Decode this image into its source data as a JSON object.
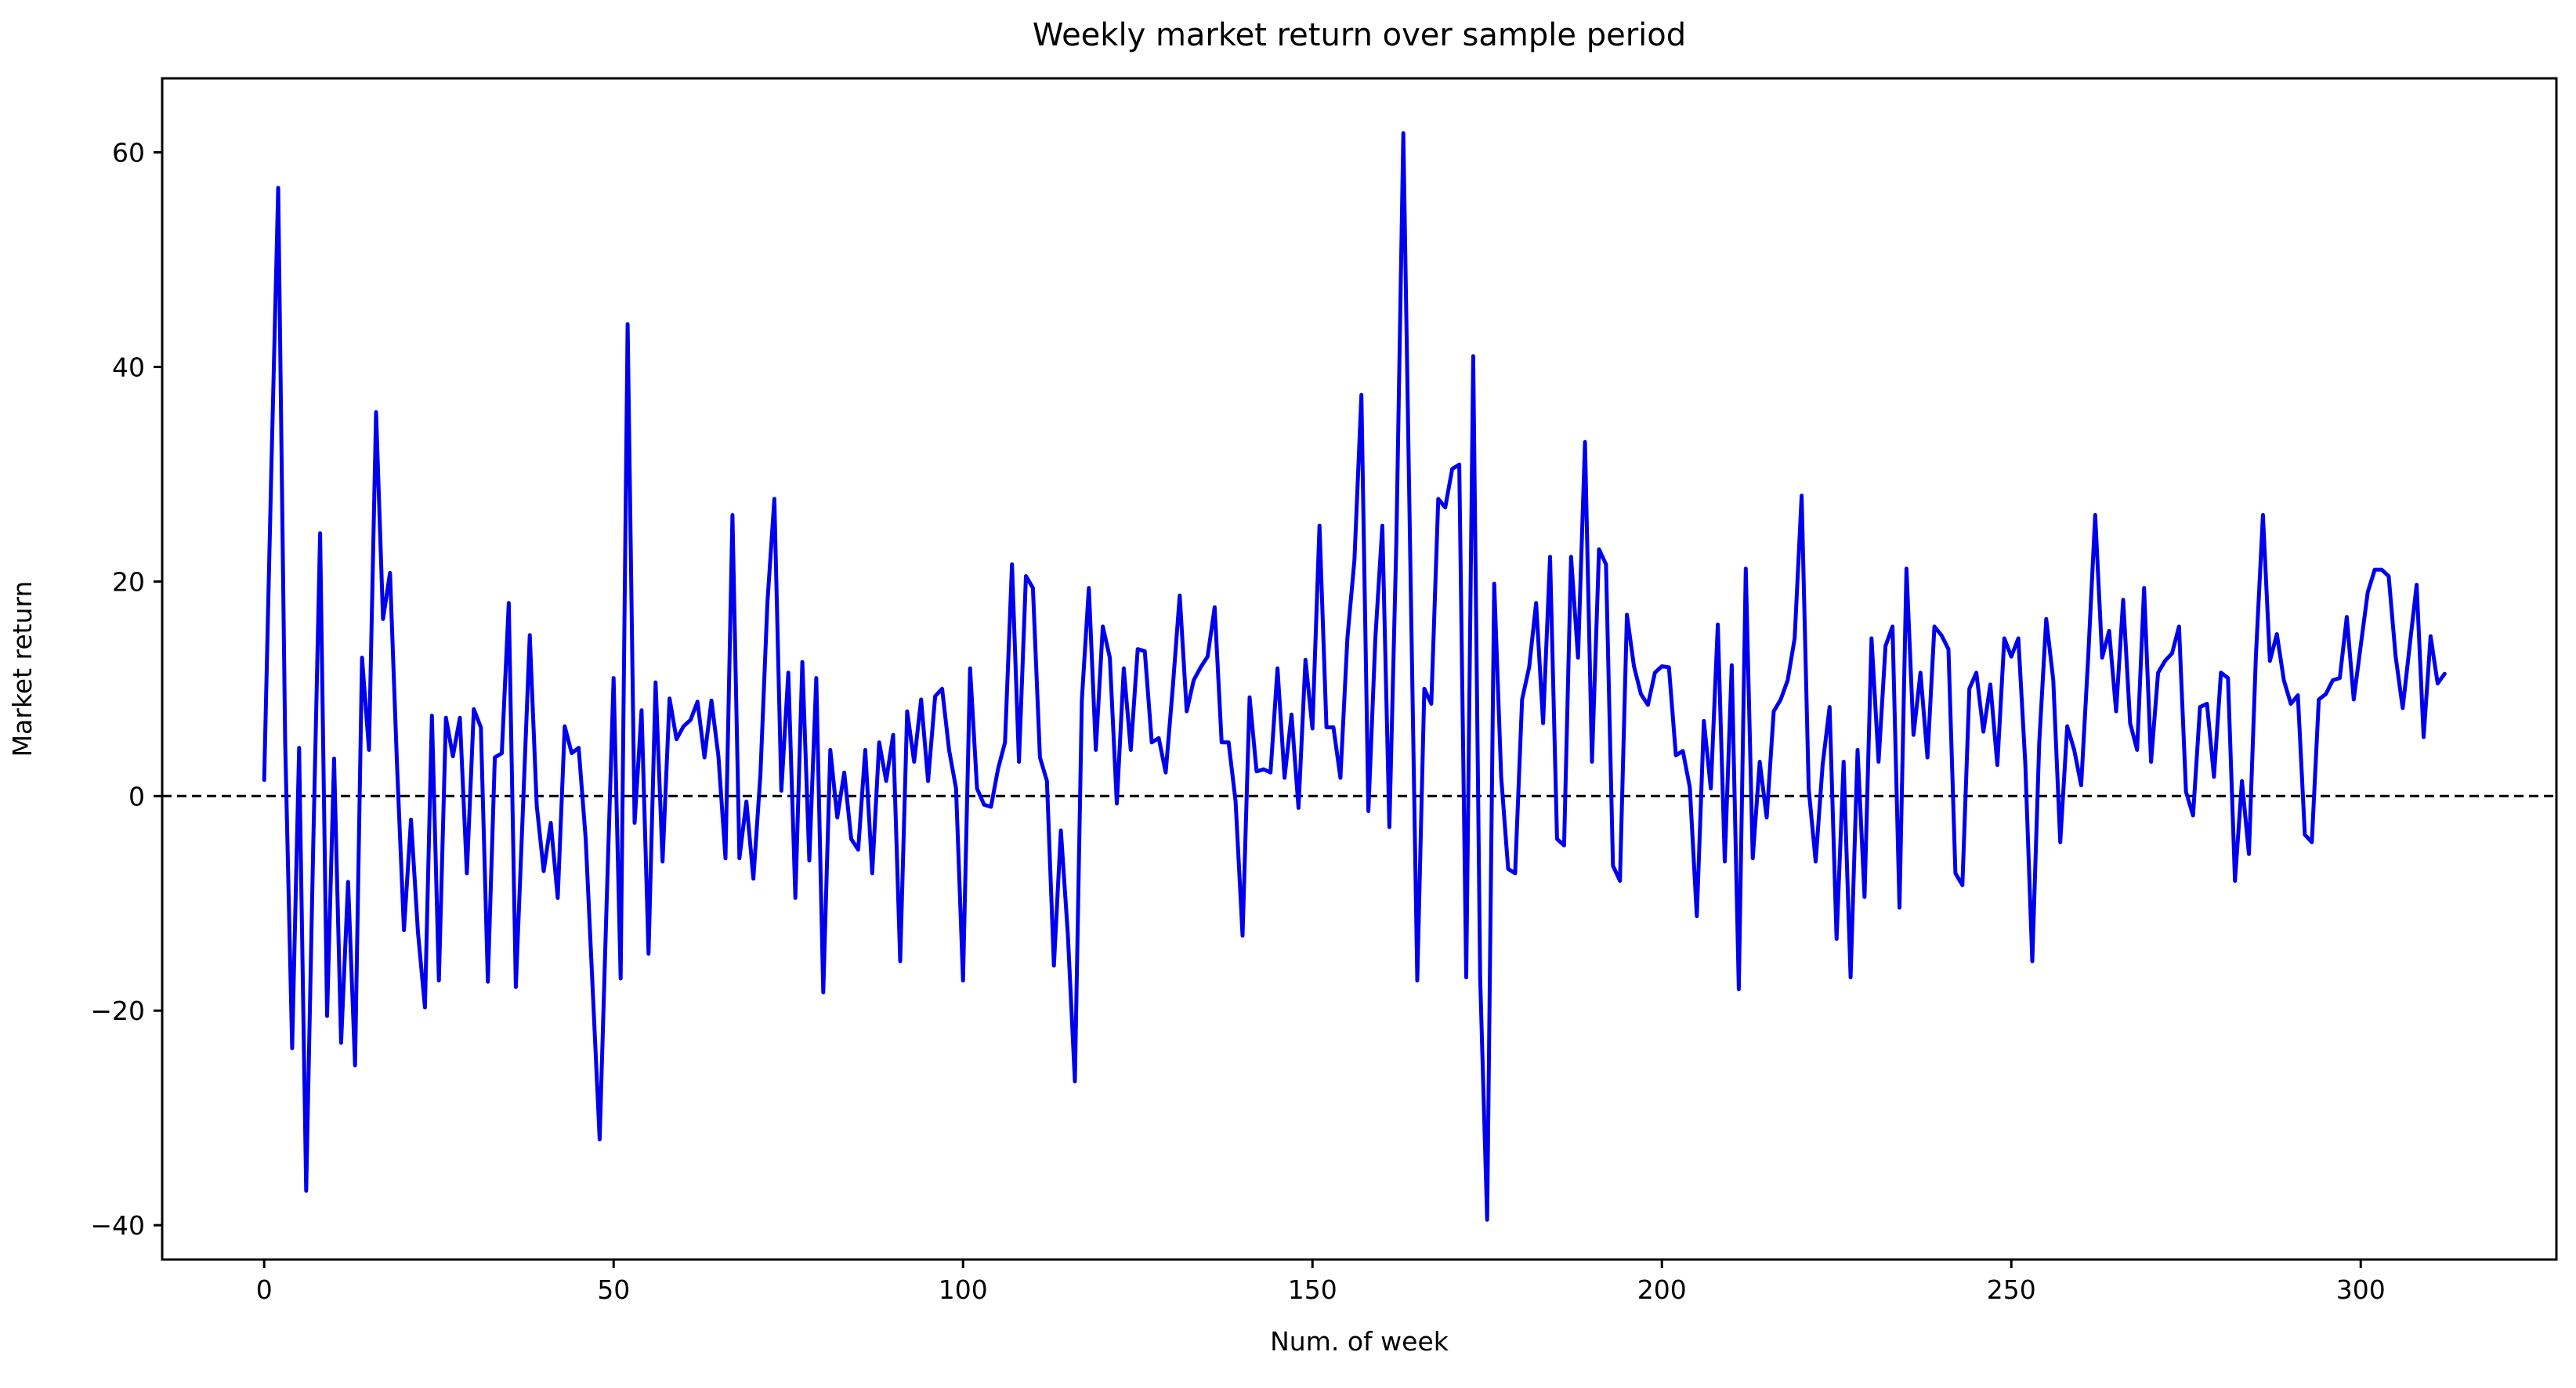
{
  "figure": {
    "title": "Weekly market return over sample period",
    "xlabel": "Num. of week",
    "ylabel": "Market return",
    "background_color": "#ffffff",
    "text_color": "#000000"
  },
  "chart_data": {
    "type": "line",
    "title": "Weekly market return over sample period",
    "xlabel": "Num. of week",
    "ylabel": "Market return",
    "series_name": "weekly market return",
    "x_start": 0,
    "x_step": 1,
    "values": [
      1.5,
      30,
      56.7,
      5,
      -23.5,
      4.5,
      -36.8,
      -5,
      24.5,
      -20.5,
      3.5,
      -23,
      -8,
      -25.1,
      12.9,
      4.3,
      35.8,
      16.5,
      20.8,
      3,
      -12.5,
      -2.2,
      -12.7,
      -19.7,
      7.5,
      -17.2,
      7.3,
      3.7,
      7.3,
      -7.2,
      8.1,
      6.4,
      -17.3,
      3.6,
      4,
      18,
      -17.8,
      -1.5,
      15,
      -0.9,
      -7,
      -2.5,
      -9.5,
      6.5,
      4,
      4.5,
      -4,
      -18,
      -32,
      -10,
      11,
      -17,
      44,
      -2.5,
      8,
      -14.7,
      10.6,
      -6.1,
      9.1,
      5.3,
      6.5,
      7.1,
      8.8,
      3.6,
      8.9,
      3.7,
      -5.8,
      26.2,
      -5.8,
      -0.5,
      -7.7,
      2,
      18,
      27.7,
      0.5,
      11.5,
      -9.5,
      12.5,
      -6,
      11,
      -18.3,
      4.3,
      -2,
      2.2,
      -4,
      -5,
      4.3,
      -7.2,
      5,
      1.4,
      5.7,
      -15.4,
      7.9,
      3.2,
      9,
      1.4,
      9.3,
      10,
      4.3,
      0.7,
      -17.2,
      11.9,
      0.7,
      -0.8,
      -1,
      2.5,
      5,
      21.6,
      3.2,
      20.5,
      19.4,
      3.6,
      1.4,
      -15.8,
      -3.2,
      -12.9,
      -26.6,
      9,
      19.4,
      4.3,
      15.8,
      12.9,
      -0.7,
      11.9,
      4.3,
      13.7,
      13.5,
      5,
      5.4,
      2.2,
      10,
      18.7,
      7.9,
      10.8,
      12,
      13,
      17.6,
      5,
      5,
      -0.5,
      -13,
      9.2,
      2.3,
      2.5,
      2.2,
      11.9,
      1.7,
      7.6,
      -1.1,
      12.7,
      6.3,
      25.2,
      6.4,
      6.4,
      1.7,
      14.7,
      22,
      37.4,
      -1.4,
      14.7,
      25.2,
      -2.9,
      23.7,
      61.8,
      22,
      -17.2,
      10,
      8.6,
      27.7,
      26.9,
      30.5,
      30.9,
      -16.9,
      41,
      -17,
      -39.5,
      19.8,
      1.8,
      -6.8,
      -7.2,
      9,
      12,
      18,
      6.8,
      22.3,
      -4,
      -4.6,
      22.3,
      12.9,
      33,
      3.2,
      23,
      21.6,
      -6.5,
      -7.9,
      16.9,
      12.1,
      9.5,
      8.5,
      11.5,
      12.1,
      12,
      3.8,
      4.2,
      0.8,
      -11.2,
      7,
      0.7,
      16,
      -6.1,
      12.2,
      -18,
      21.2,
      -5.8,
      3.2,
      -2,
      7.9,
      9,
      10.8,
      14.7,
      28,
      0.7,
      -6.1,
      2.9,
      8.3,
      -13.3,
      3.2,
      -16.9,
      4.3,
      -9.4,
      14.7,
      3.2,
      14,
      15.8,
      -10.4,
      21.2,
      5.7,
      11.5,
      3.6,
      15.8,
      15,
      13.7,
      -7.2,
      -8.3,
      10,
      11.5,
      6,
      10.4,
      2.9,
      14.7,
      13,
      14.7,
      3,
      -15.4,
      5,
      16.5,
      10.8,
      -4.3,
      6.5,
      4.3,
      1,
      13,
      26.2,
      12.9,
      15.4,
      7.9,
      18.3,
      6.8,
      4.3,
      19.4,
      3.2,
      11.5,
      12.6,
      13.3,
      15.8,
      0.4,
      -1.8,
      8.3,
      8.6,
      1.8,
      11.5,
      11,
      -7.9,
      1.4,
      -5.4,
      13,
      26.2,
      12.6,
      15.1,
      10.8,
      8.6,
      9.4,
      -3.6,
      -4.3,
      9,
      9.5,
      10.8,
      11,
      16.7,
      9,
      14,
      19,
      21.1,
      21.1,
      20.5,
      13,
      8.2,
      14,
      19.7,
      5.5,
      14.9,
      10.5,
      11.4
    ],
    "x_ticks": [
      0,
      50,
      100,
      150,
      200,
      250,
      300
    ],
    "y_ticks": [
      -40,
      -20,
      0,
      20,
      40,
      60
    ],
    "xlim": [
      -14.6,
      328.0
    ],
    "ylim": [
      -43.2,
      66.9
    ],
    "grid": false,
    "legend": null,
    "line_color": "#0000ee",
    "line_width": 5,
    "zero_line": {
      "y": 0,
      "color": "#000000",
      "width": 3,
      "dash": "12 7"
    },
    "spine_color": "#000000",
    "minus_sign": "−"
  }
}
